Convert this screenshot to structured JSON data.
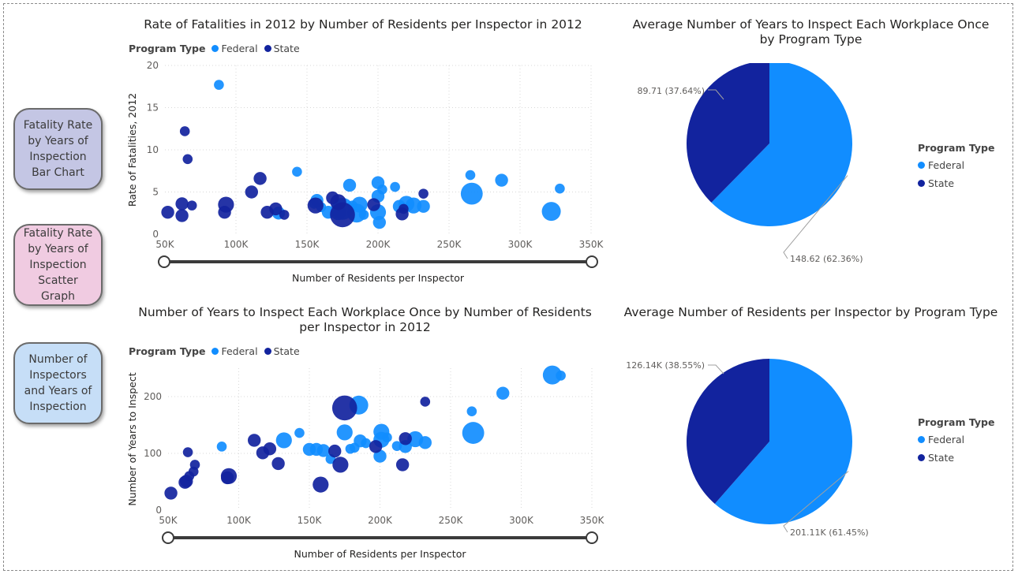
{
  "nav": {
    "bar_chart_label": "Fatality Rate by Years of Inspection Bar Chart",
    "bar_chart_color": "#c4c6e4",
    "scatter_label": "Fatality Rate by Years of Inspection Scatter Graph",
    "scatter_color": "#f0cbe1",
    "inspectors_label": "Number of Inspectors and Years of Inspection",
    "inspectors_color": "#c6def7"
  },
  "legend_title": "Program Type",
  "colors": {
    "Federal": "#118dff",
    "State": "#12239e"
  },
  "chart_data": [
    {
      "type": "scatter",
      "title": "Rate of Fatalities in 2012 by Number of Residents per Inspector in 2012",
      "xlabel": "Number of Residents per Inspector",
      "ylabel": "Rate of Fatalities, 2012",
      "xlim": [
        50000,
        350000
      ],
      "ylim": [
        0,
        20
      ],
      "xticks": [
        "50K",
        "100K",
        "150K",
        "200K",
        "250K",
        "300K",
        "350K"
      ],
      "yticks": [
        "0",
        "5",
        "10",
        "15",
        "20"
      ],
      "grid": true,
      "legend_position": "top-left",
      "series": [
        {
          "name": "Federal",
          "points": [
            [
              88000,
              17.7,
              2
            ],
            [
              143000,
              7.4,
              2
            ],
            [
              155000,
              3.6,
              2
            ],
            [
              157000,
              4.0,
              3
            ],
            [
              160000,
              3.2,
              2
            ],
            [
              165000,
              2.6,
              3
            ],
            [
              172000,
              2.6,
              4
            ],
            [
              175000,
              3.0,
              6
            ],
            [
              180000,
              5.8,
              3
            ],
            [
              182000,
              3.4,
              2
            ],
            [
              185000,
              2.5,
              5
            ],
            [
              187000,
              3.5,
              4
            ],
            [
              190000,
              2.3,
              2
            ],
            [
              200000,
              6.1,
              3
            ],
            [
              200000,
              4.5,
              3
            ],
            [
              200000,
              2.6,
              4
            ],
            [
              201000,
              1.4,
              3
            ],
            [
              203000,
              5.3,
              2
            ],
            [
              212000,
              5.6,
              2
            ],
            [
              215000,
              3.3,
              3
            ],
            [
              220000,
              3.6,
              4
            ],
            [
              225000,
              3.4,
              4
            ],
            [
              232000,
              3.3,
              3
            ],
            [
              265000,
              7.0,
              2
            ],
            [
              266000,
              4.8,
              6
            ],
            [
              287000,
              6.4,
              3
            ],
            [
              322000,
              2.7,
              5
            ],
            [
              328000,
              5.4,
              2
            ],
            [
              130000,
              2.5,
              3
            ]
          ]
        },
        {
          "name": "State",
          "points": [
            [
              52000,
              2.6,
              3
            ],
            [
              62000,
              2.2,
              3
            ],
            [
              62000,
              3.6,
              3
            ],
            [
              64000,
              12.2,
              2
            ],
            [
              66000,
              8.9,
              2
            ],
            [
              69000,
              3.4,
              2
            ],
            [
              92000,
              2.6,
              3
            ],
            [
              93000,
              3.5,
              4
            ],
            [
              111000,
              5.0,
              3
            ],
            [
              117000,
              6.6,
              3
            ],
            [
              122000,
              2.6,
              3
            ],
            [
              128000,
              3.0,
              3
            ],
            [
              134000,
              2.3,
              2
            ],
            [
              156000,
              3.4,
              4
            ],
            [
              168000,
              4.3,
              3
            ],
            [
              172000,
              3.8,
              4
            ],
            [
              175000,
              2.3,
              7
            ],
            [
              197000,
              3.5,
              3
            ],
            [
              217000,
              2.4,
              3
            ],
            [
              218000,
              3.0,
              2
            ],
            [
              232000,
              4.8,
              2
            ]
          ]
        }
      ],
      "slider": {
        "label": "Number of Residents per Inspector"
      }
    },
    {
      "type": "scatter",
      "title": "Number of Years to Inspect Each Workplace Once by Number of Residents per Inspector in 2012",
      "xlabel": "Number of Residents per Inspector",
      "ylabel": "Number of Years to Inspect",
      "xlim": [
        50000,
        350000
      ],
      "ylim": [
        0,
        250
      ],
      "xticks": [
        "50K",
        "100K",
        "150K",
        "200K",
        "250K",
        "300K",
        "350K"
      ],
      "yticks": [
        "0",
        "100",
        "200"
      ],
      "grid": true,
      "legend_position": "top-left",
      "series": [
        {
          "name": "Federal",
          "points": [
            [
              88000,
              112,
              2
            ],
            [
              132000,
              123,
              4
            ],
            [
              143000,
              136,
              2
            ],
            [
              150000,
              107,
              3
            ],
            [
              155000,
              107,
              3
            ],
            [
              160000,
              105,
              3
            ],
            [
              165000,
              90,
              2
            ],
            [
              175000,
              137,
              4
            ],
            [
              179000,
              108,
              2
            ],
            [
              182000,
              110,
              2
            ],
            [
              185000,
              185,
              5
            ],
            [
              186000,
              122,
              3
            ],
            [
              190000,
              118,
              2
            ],
            [
              200000,
              95,
              3
            ],
            [
              201000,
              138,
              4
            ],
            [
              201000,
              124,
              4
            ],
            [
              205000,
              128,
              2
            ],
            [
              212000,
              113,
              2
            ],
            [
              218000,
              112,
              3
            ],
            [
              225000,
              125,
              4
            ],
            [
              232000,
              119,
              3
            ],
            [
              265000,
              174,
              2
            ],
            [
              266000,
              136,
              6
            ],
            [
              287000,
              206,
              3
            ],
            [
              322000,
              238,
              5
            ],
            [
              328000,
              237,
              2
            ]
          ]
        },
        {
          "name": "State",
          "points": [
            [
              52000,
              30,
              3
            ],
            [
              62000,
              49,
              3
            ],
            [
              63000,
              51,
              3
            ],
            [
              64000,
              102,
              2
            ],
            [
              65000,
              60,
              2
            ],
            [
              68000,
              68,
              2
            ],
            [
              69000,
              80,
              2
            ],
            [
              92000,
              57,
              3
            ],
            [
              93000,
              60,
              4
            ],
            [
              111000,
              123,
              3
            ],
            [
              117000,
              101,
              3
            ],
            [
              122000,
              108,
              3
            ],
            [
              128000,
              82,
              3
            ],
            [
              158000,
              45,
              4
            ],
            [
              168000,
              104,
              3
            ],
            [
              172000,
              80,
              4
            ],
            [
              175000,
              180,
              7
            ],
            [
              197000,
              112,
              3
            ],
            [
              216000,
              80,
              3
            ],
            [
              218000,
              126,
              3
            ],
            [
              232000,
              191,
              2
            ]
          ]
        }
      ],
      "slider": {
        "label": "Number of Residents per Inspector"
      }
    },
    {
      "type": "pie",
      "title": "Average Number of Years to Inspect Each Workplace Once by Program Type",
      "legend_position": "right",
      "slices": [
        {
          "name": "Federal",
          "value": 148.62,
          "label": "148.62 (62.36%)"
        },
        {
          "name": "State",
          "value": 89.71,
          "label": "89.71 (37.64%)"
        }
      ]
    },
    {
      "type": "pie",
      "title": "Average Number of Residents per Inspector by Program Type",
      "legend_position": "right",
      "slices": [
        {
          "name": "Federal",
          "value": 201110,
          "label": "201.11K (61.45%)"
        },
        {
          "name": "State",
          "value": 126140,
          "label": "126.14K (38.55%)"
        }
      ]
    }
  ]
}
